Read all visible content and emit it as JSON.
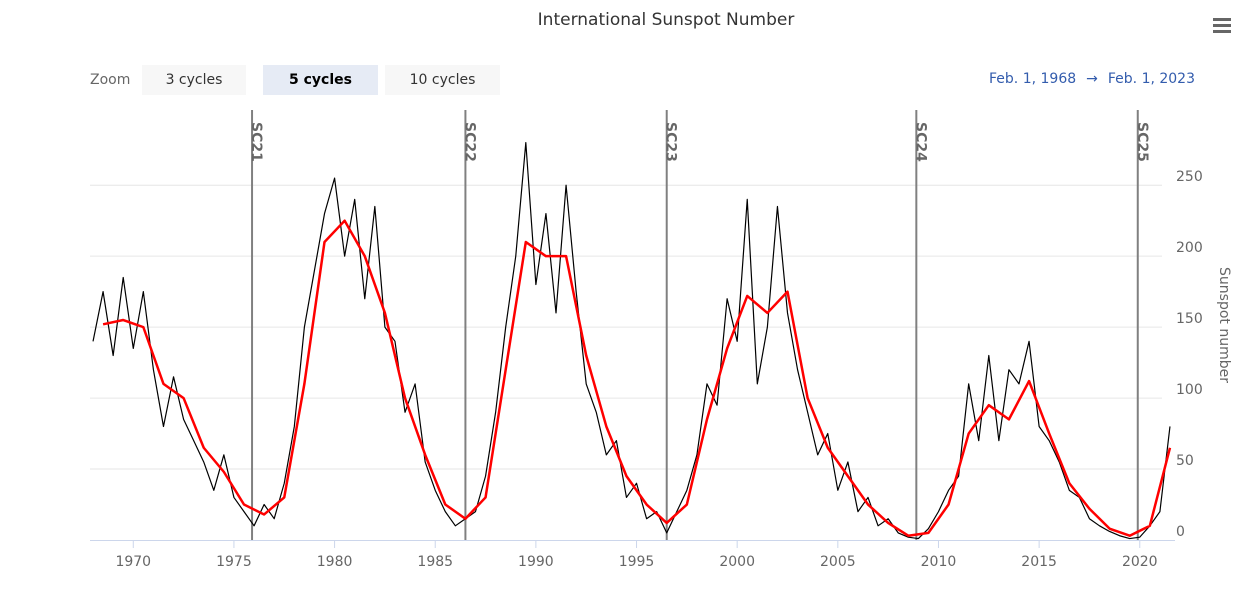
{
  "chart_data": {
    "type": "line",
    "title": "International Sunspot Number",
    "ylabel": "Sunspot number",
    "zoom": {
      "label": "Zoom",
      "buttons": [
        "3 cycles",
        "5 cycles",
        "10 cycles"
      ],
      "selected": 1
    },
    "range": {
      "from": "Feb. 1, 1968",
      "arrow": "→",
      "to": "Feb. 1, 2023"
    },
    "xlim": [
      1967.85,
      2021.75
    ],
    "xticks": [
      1970,
      1975,
      1980,
      1985,
      1990,
      1995,
      2000,
      2005,
      2010,
      2015,
      2020
    ],
    "ylim": [
      0,
      303
    ],
    "yticks": [
      0,
      50,
      100,
      150,
      200,
      250
    ],
    "grid": true,
    "plot_lines": [
      {
        "value": 1975.9,
        "label": "SC21"
      },
      {
        "value": 1986.5,
        "label": "SC22"
      },
      {
        "value": 1996.5,
        "label": "SC23"
      },
      {
        "value": 2008.9,
        "label": "SC24"
      },
      {
        "value": 2019.9,
        "label": "SC25"
      }
    ],
    "series": [
      {
        "color": "#000000",
        "x": [
          1968.0,
          1968.5,
          1969.0,
          1969.5,
          1970.0,
          1970.5,
          1971.0,
          1971.5,
          1972.0,
          1972.5,
          1973.0,
          1973.5,
          1974.0,
          1974.5,
          1975.0,
          1975.5,
          1976.0,
          1976.5,
          1977.0,
          1977.5,
          1978.0,
          1978.5,
          1979.0,
          1979.5,
          1980.0,
          1980.5,
          1981.0,
          1981.5,
          1982.0,
          1982.5,
          1983.0,
          1983.5,
          1984.0,
          1984.5,
          1985.0,
          1985.5,
          1986.0,
          1986.5,
          1987.0,
          1987.5,
          1988.0,
          1988.5,
          1989.0,
          1989.5,
          1990.0,
          1990.5,
          1991.0,
          1991.5,
          1992.0,
          1992.5,
          1993.0,
          1993.5,
          1994.0,
          1994.5,
          1995.0,
          1995.5,
          1996.0,
          1996.5,
          1997.0,
          1997.5,
          1998.0,
          1998.5,
          1999.0,
          1999.5,
          2000.0,
          2000.5,
          2001.0,
          2001.5,
          2002.0,
          2002.5,
          2003.0,
          2003.5,
          2004.0,
          2004.5,
          2005.0,
          2005.5,
          2006.0,
          2006.5,
          2007.0,
          2007.5,
          2008.0,
          2008.5,
          2009.0,
          2009.5,
          2010.0,
          2010.5,
          2011.0,
          2011.5,
          2012.0,
          2012.5,
          2013.0,
          2013.5,
          2014.0,
          2014.5,
          2015.0,
          2015.5,
          2016.0,
          2016.5,
          2017.0,
          2017.5,
          2018.0,
          2018.5,
          2019.0,
          2019.5,
          2020.0,
          2020.5,
          2021.0,
          2021.5
        ],
        "values": [
          140,
          175,
          130,
          185,
          135,
          175,
          120,
          80,
          115,
          85,
          70,
          55,
          35,
          60,
          30,
          20,
          10,
          25,
          15,
          40,
          80,
          150,
          190,
          230,
          255,
          200,
          240,
          170,
          235,
          150,
          140,
          90,
          110,
          55,
          35,
          20,
          10,
          15,
          20,
          45,
          90,
          150,
          200,
          280,
          180,
          230,
          160,
          250,
          175,
          110,
          90,
          60,
          70,
          30,
          40,
          15,
          20,
          5,
          20,
          35,
          60,
          110,
          95,
          170,
          140,
          240,
          110,
          150,
          235,
          160,
          120,
          90,
          60,
          75,
          35,
          55,
          20,
          30,
          10,
          15,
          5,
          2,
          1,
          8,
          20,
          35,
          45,
          110,
          70,
          130,
          70,
          120,
          110,
          140,
          80,
          70,
          55,
          35,
          30,
          15,
          10,
          6,
          3,
          1,
          2,
          10,
          20,
          80
        ]
      },
      {
        "color": "#ff0000",
        "x": [
          1968.5,
          1969.5,
          1970.5,
          1971.5,
          1972.5,
          1973.5,
          1974.5,
          1975.5,
          1976.5,
          1977.5,
          1978.5,
          1979.5,
          1980.5,
          1981.5,
          1982.5,
          1983.5,
          1984.5,
          1985.5,
          1986.5,
          1987.5,
          1988.5,
          1989.5,
          1990.5,
          1991.5,
          1992.5,
          1993.5,
          1994.5,
          1995.5,
          1996.5,
          1997.5,
          1998.5,
          1999.5,
          2000.5,
          2001.5,
          2002.5,
          2003.5,
          2004.5,
          2005.5,
          2006.5,
          2007.5,
          2008.5,
          2009.5,
          2010.5,
          2011.5,
          2012.5,
          2013.5,
          2014.5,
          2015.5,
          2016.5,
          2017.5,
          2018.5,
          2019.5,
          2020.5,
          2021.5
        ],
        "values": [
          152,
          155,
          150,
          110,
          100,
          65,
          48,
          25,
          18,
          30,
          110,
          210,
          225,
          200,
          160,
          100,
          60,
          25,
          15,
          30,
          120,
          210,
          200,
          200,
          130,
          80,
          45,
          25,
          12,
          25,
          85,
          135,
          172,
          160,
          175,
          100,
          65,
          45,
          25,
          12,
          3,
          5,
          25,
          75,
          95,
          85,
          112,
          75,
          40,
          22,
          8,
          3,
          10,
          65
        ]
      }
    ]
  }
}
